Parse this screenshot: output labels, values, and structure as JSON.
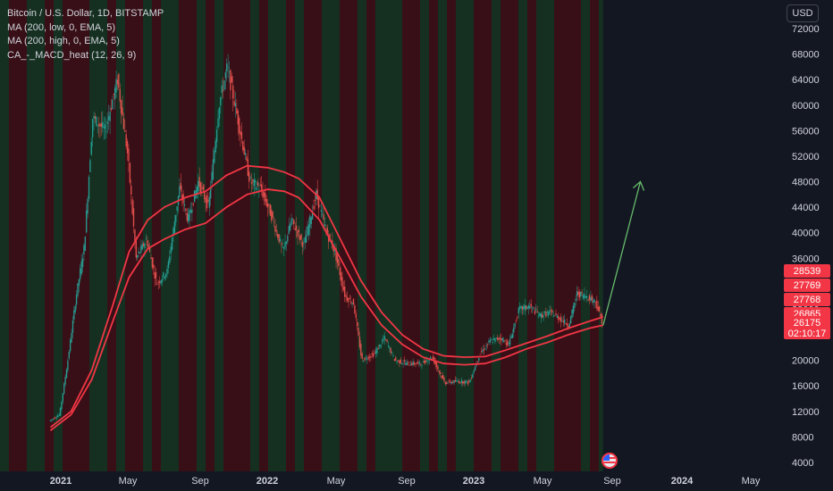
{
  "header": {
    "title": "Bitcoin / U.S. Dollar, 1D, BITSTAMP",
    "indicators": [
      "MA (200, low, 0, EMA, 5)",
      "MA (200, high, 0, EMA, 5)",
      "CA_-_MACD_heat (12, 26, 9)"
    ],
    "currency_button": "USD"
  },
  "colors": {
    "background": "#131722",
    "heat_green": "#1b5e20",
    "heat_red": "#7f0000",
    "ma_line": "#f23645",
    "projection_arrow": "#66bb6a",
    "price_up": "#26a69a",
    "price_down": "#ef5350"
  },
  "chart_data": {
    "type": "line",
    "title": "Bitcoin / U.S. Dollar, 1D, BITSTAMP",
    "x_ticks": [
      "2021",
      "May",
      "Sep",
      "2022",
      "May",
      "Sep",
      "2023",
      "May",
      "Sep",
      "2024",
      "May"
    ],
    "y_ticks": [
      4000,
      8000,
      12000,
      16000,
      20000,
      24000,
      28000,
      32000,
      36000,
      40000,
      44000,
      48000,
      52000,
      56000,
      60000,
      64000,
      68000,
      72000
    ],
    "ylim": [
      3000,
      73000
    ],
    "xlim": [
      2020.93,
      2024.47
    ],
    "series": [
      {
        "name": "Bitcoin / U.S. Dollar",
        "points": [
          [
            2020.95,
            10500
          ],
          [
            2021.0,
            11500
          ],
          [
            2021.04,
            20000
          ],
          [
            2021.08,
            30000
          ],
          [
            2021.12,
            38000
          ],
          [
            2021.16,
            58000
          ],
          [
            2021.22,
            56000
          ],
          [
            2021.28,
            64000
          ],
          [
            2021.33,
            52000
          ],
          [
            2021.37,
            36000
          ],
          [
            2021.42,
            39000
          ],
          [
            2021.47,
            32000
          ],
          [
            2021.52,
            34000
          ],
          [
            2021.58,
            47000
          ],
          [
            2021.62,
            42000
          ],
          [
            2021.67,
            48000
          ],
          [
            2021.72,
            44000
          ],
          [
            2021.77,
            60000
          ],
          [
            2021.81,
            66000
          ],
          [
            2021.86,
            58000
          ],
          [
            2021.92,
            48000
          ],
          [
            2021.97,
            47000
          ],
          [
            2022.02,
            43000
          ],
          [
            2022.08,
            37000
          ],
          [
            2022.12,
            42000
          ],
          [
            2022.18,
            38000
          ],
          [
            2022.24,
            46000
          ],
          [
            2022.29,
            40000
          ],
          [
            2022.33,
            37000
          ],
          [
            2022.38,
            30000
          ],
          [
            2022.42,
            29000
          ],
          [
            2022.46,
            20000
          ],
          [
            2022.52,
            21000
          ],
          [
            2022.57,
            23500
          ],
          [
            2022.62,
            20000
          ],
          [
            2022.68,
            19500
          ],
          [
            2022.75,
            19500
          ],
          [
            2022.8,
            20500
          ],
          [
            2022.86,
            16500
          ],
          [
            2022.92,
            16700
          ],
          [
            2022.98,
            16600
          ],
          [
            2023.03,
            21000
          ],
          [
            2023.08,
            23000
          ],
          [
            2023.13,
            23500
          ],
          [
            2023.17,
            22500
          ],
          [
            2023.22,
            28000
          ],
          [
            2023.27,
            28500
          ],
          [
            2023.32,
            27000
          ],
          [
            2023.37,
            27500
          ],
          [
            2023.42,
            26500
          ],
          [
            2023.46,
            25500
          ],
          [
            2023.5,
            30500
          ],
          [
            2023.55,
            30000
          ],
          [
            2023.59,
            29200
          ],
          [
            2023.62,
            26175
          ]
        ]
      },
      {
        "name": "MA (200, low, 0, EMA, 5)",
        "points": [
          [
            2020.95,
            9000
          ],
          [
            2021.05,
            11500
          ],
          [
            2021.15,
            17000
          ],
          [
            2021.25,
            26000
          ],
          [
            2021.33,
            33000
          ],
          [
            2021.42,
            37500
          ],
          [
            2021.5,
            39000
          ],
          [
            2021.6,
            40500
          ],
          [
            2021.7,
            41500
          ],
          [
            2021.8,
            44000
          ],
          [
            2021.9,
            46000
          ],
          [
            2022.0,
            46800
          ],
          [
            2022.08,
            46500
          ],
          [
            2022.15,
            45500
          ],
          [
            2022.25,
            42000
          ],
          [
            2022.35,
            36000
          ],
          [
            2022.45,
            30000
          ],
          [
            2022.55,
            25500
          ],
          [
            2022.65,
            22500
          ],
          [
            2022.75,
            20500
          ],
          [
            2022.85,
            19500
          ],
          [
            2022.95,
            19300
          ],
          [
            2023.05,
            19500
          ],
          [
            2023.15,
            20500
          ],
          [
            2023.25,
            21800
          ],
          [
            2023.35,
            22800
          ],
          [
            2023.45,
            24000
          ],
          [
            2023.55,
            25000
          ],
          [
            2023.62,
            25500
          ]
        ]
      },
      {
        "name": "MA (200, high, 0, EMA, 5)",
        "points": [
          [
            2020.95,
            9500
          ],
          [
            2021.05,
            12000
          ],
          [
            2021.15,
            18500
          ],
          [
            2021.25,
            28500
          ],
          [
            2021.33,
            37000
          ],
          [
            2021.42,
            42000
          ],
          [
            2021.5,
            44000
          ],
          [
            2021.6,
            45500
          ],
          [
            2021.7,
            46500
          ],
          [
            2021.8,
            49000
          ],
          [
            2021.9,
            50500
          ],
          [
            2022.0,
            50200
          ],
          [
            2022.08,
            49500
          ],
          [
            2022.15,
            48500
          ],
          [
            2022.25,
            45500
          ],
          [
            2022.35,
            39000
          ],
          [
            2022.45,
            32500
          ],
          [
            2022.55,
            27500
          ],
          [
            2022.65,
            24000
          ],
          [
            2022.75,
            21800
          ],
          [
            2022.85,
            20700
          ],
          [
            2022.95,
            20500
          ],
          [
            2023.05,
            20600
          ],
          [
            2023.15,
            21600
          ],
          [
            2023.25,
            22700
          ],
          [
            2023.35,
            23800
          ],
          [
            2023.45,
            25000
          ],
          [
            2023.55,
            26100
          ],
          [
            2023.62,
            26800
          ]
        ]
      },
      {
        "name": "projection",
        "points": [
          [
            2023.62,
            25500
          ],
          [
            2023.8,
            48000
          ]
        ]
      }
    ],
    "price_labels": [
      {
        "value": "28539",
        "price": 28539
      },
      {
        "value": "27769",
        "price": 27769
      },
      {
        "value": "27768",
        "price": 27768
      },
      {
        "value": "26865",
        "price": 26865
      },
      {
        "value": "26175",
        "price": 26175,
        "sub": "02:10:17"
      }
    ],
    "grid": false
  }
}
